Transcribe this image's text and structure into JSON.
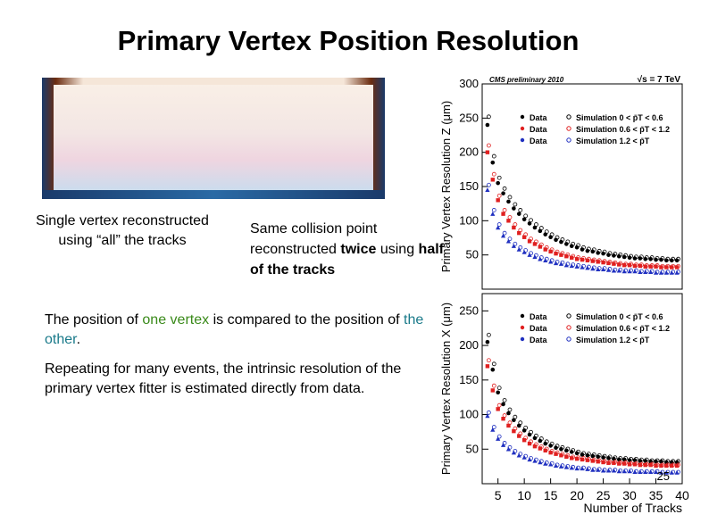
{
  "title": "Primary Vertex Position Resolution",
  "caption_left": "Single vertex reconstructed using “all” the tracks",
  "caption_right": {
    "pre": "Same collision point reconstructed ",
    "bold1": "twice",
    "mid": " using ",
    "bold2": "half of the tracks"
  },
  "paragraph1": {
    "a": "The position of ",
    "b": "one vertex",
    "c": " is compared to the position of ",
    "d": "the other",
    "e": "."
  },
  "paragraph2": "Repeating for many events, the intrinsic resolution of the primary vertex fitter is estimated directly from data.",
  "page_number": "25",
  "colors": {
    "green": "#3a8a1a",
    "teal": "#1a7a8a",
    "data_low": "#000000",
    "data_mid": "#e02020",
    "data_high": "#2030c0"
  },
  "chart_data": [
    {
      "type": "scatter",
      "header_left": "CMS preliminary 2010",
      "header_right": "√s = 7 TeV",
      "ylabel": "Primary Vertex Resolution Z (μm)",
      "ylim": [
        0,
        300
      ],
      "yticks": [
        50,
        100,
        150,
        200,
        250,
        300
      ],
      "xlim": [
        2,
        40
      ],
      "legend": [
        "Data",
        "Data",
        "Data",
        "Simulation 0 < p̄T < 0.6",
        "Simulation 0.6 < p̄T < 1.2",
        "Simulation 1.2 < p̄T"
      ],
      "x": [
        3,
        4,
        5,
        6,
        7,
        8,
        9,
        10,
        11,
        12,
        13,
        14,
        15,
        16,
        17,
        18,
        19,
        20,
        21,
        22,
        23,
        24,
        25,
        26,
        27,
        28,
        29,
        30,
        31,
        32,
        33,
        34,
        35,
        36,
        37,
        38,
        39
      ],
      "series": [
        {
          "color": "#000000",
          "values": [
            240,
            185,
            155,
            140,
            128,
            118,
            110,
            102,
            96,
            90,
            85,
            80,
            76,
            72,
            69,
            66,
            63,
            61,
            58,
            56,
            55,
            53,
            52,
            50,
            49,
            48,
            47,
            46,
            45,
            45,
            44,
            44,
            43,
            43,
            42,
            42,
            42
          ]
        },
        {
          "color": "#e02020",
          "values": [
            200,
            160,
            130,
            110,
            100,
            90,
            82,
            76,
            70,
            66,
            62,
            58,
            55,
            52,
            50,
            48,
            46,
            44,
            43,
            42,
            41,
            40,
            39,
            38,
            37,
            36,
            35,
            35,
            34,
            34,
            33,
            33,
            33,
            32,
            32,
            32,
            32
          ]
        },
        {
          "color": "#2030c0",
          "values": [
            145,
            110,
            90,
            78,
            70,
            63,
            58,
            54,
            50,
            47,
            44,
            42,
            40,
            38,
            37,
            35,
            34,
            33,
            32,
            31,
            30,
            29,
            29,
            28,
            27,
            27,
            26,
            26,
            26,
            25,
            25,
            25,
            24,
            24,
            24,
            24,
            24
          ]
        }
      ]
    },
    {
      "type": "scatter",
      "ylabel": "Primary Vertex Resolution X (μm)",
      "xlabel": "Number of Tracks",
      "ylim": [
        0,
        275
      ],
      "yticks": [
        50,
        100,
        150,
        200,
        250
      ],
      "xticks": [
        5,
        10,
        15,
        20,
        25,
        30,
        35,
        40
      ],
      "xlim": [
        2,
        40
      ],
      "legend": [
        "Data",
        "Data",
        "Data",
        "Simulation 0 < p̄T < 0.6",
        "Simulation 0.6 < p̄T < 1.2",
        "Simulation 1.2 < p̄T"
      ],
      "x": [
        3,
        4,
        5,
        6,
        7,
        8,
        9,
        10,
        11,
        12,
        13,
        14,
        15,
        16,
        17,
        18,
        19,
        20,
        21,
        22,
        23,
        24,
        25,
        26,
        27,
        28,
        29,
        30,
        31,
        32,
        33,
        34,
        35,
        36,
        37,
        38,
        39
      ],
      "series": [
        {
          "color": "#000000",
          "values": [
            205,
            165,
            132,
            115,
            102,
            92,
            84,
            77,
            71,
            66,
            62,
            58,
            55,
            52,
            50,
            48,
            46,
            44,
            42,
            41,
            40,
            39,
            38,
            37,
            36,
            35,
            35,
            34,
            34,
            33,
            33,
            32,
            32,
            32,
            31,
            31,
            31
          ]
        },
        {
          "color": "#e02020",
          "values": [
            170,
            135,
            108,
            94,
            84,
            76,
            69,
            63,
            58,
            54,
            51,
            48,
            45,
            43,
            41,
            39,
            37,
            36,
            35,
            34,
            33,
            32,
            31,
            30,
            30,
            29,
            29,
            28,
            28,
            27,
            27,
            27,
            26,
            26,
            26,
            26,
            26
          ]
        },
        {
          "color": "#2030c0",
          "values": [
            98,
            78,
            65,
            56,
            50,
            45,
            41,
            38,
            35,
            33,
            31,
            29,
            28,
            26,
            25,
            24,
            23,
            22,
            22,
            21,
            20,
            20,
            19,
            19,
            19,
            18,
            18,
            18,
            17,
            17,
            17,
            17,
            17,
            16,
            16,
            16,
            16
          ]
        }
      ]
    }
  ]
}
